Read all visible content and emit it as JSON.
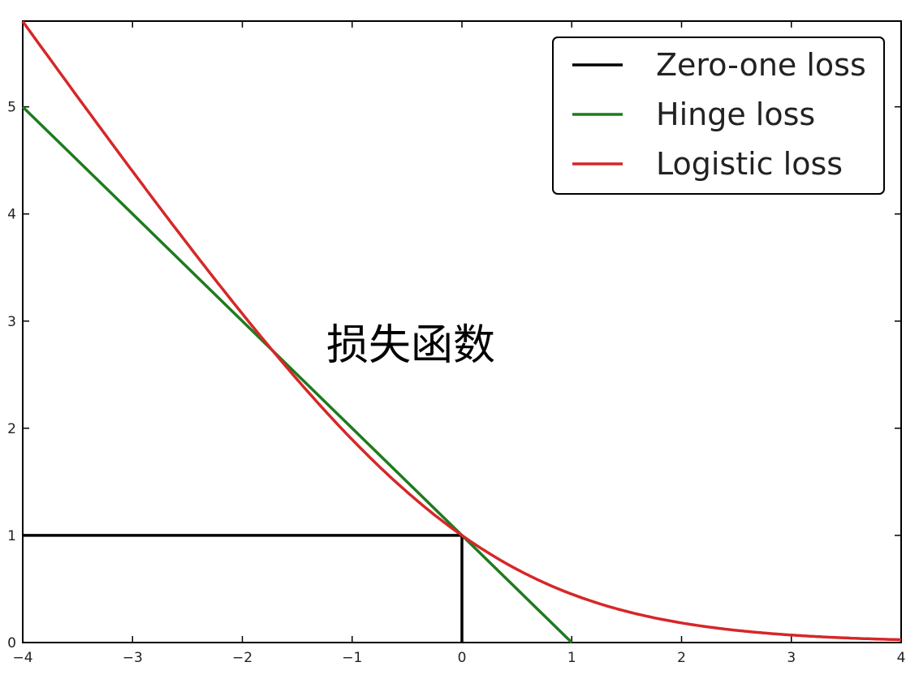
{
  "chart_data": {
    "type": "line",
    "title": "",
    "xlabel": "",
    "ylabel": "",
    "xlim": [
      -4,
      4
    ],
    "ylim": [
      0,
      5.8
    ],
    "x_ticks": [
      "−4",
      "−3",
      "−2",
      "−1",
      "0",
      "1",
      "2",
      "3",
      "4"
    ],
    "y_ticks": [
      "0",
      "1",
      "2",
      "3",
      "4",
      "5"
    ],
    "x_tick_values": [
      -4,
      -3,
      -2,
      -1,
      0,
      1,
      2,
      3,
      4
    ],
    "y_tick_values": [
      0,
      1,
      2,
      3,
      4,
      5
    ],
    "grid": false,
    "legend_position": "top-right",
    "annotation": "损失函数",
    "series": [
      {
        "name": "Zero-one loss",
        "color": "#000000",
        "x": [
          -4,
          0,
          0
        ],
        "y": [
          1,
          1,
          0
        ]
      },
      {
        "name": "Hinge loss",
        "color": "#1e7b1e",
        "x": [
          -4,
          -3,
          -2,
          -1,
          0,
          1
        ],
        "y": [
          5,
          4,
          3,
          2,
          1,
          0
        ]
      },
      {
        "name": "Logistic loss",
        "color": "#d62728",
        "x": [
          -4,
          -3.5,
          -3,
          -2.5,
          -2,
          -1.5,
          -1,
          -0.5,
          0,
          0.5,
          1,
          1.5,
          2,
          2.5,
          3,
          3.5,
          4
        ],
        "y": [
          5.77,
          5.07,
          4.37,
          3.67,
          2.98,
          2.3,
          1.62,
          0.98,
          1.0,
          0.68,
          0.45,
          0.29,
          0.18,
          0.11,
          0.07,
          0.04,
          0.03
        ]
      }
    ]
  }
}
